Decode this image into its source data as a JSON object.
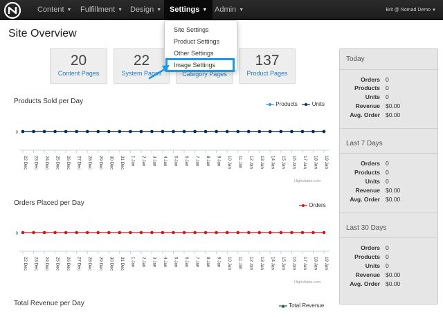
{
  "navbar": {
    "items": [
      {
        "label": "Content"
      },
      {
        "label": "Fulfillment"
      },
      {
        "label": "Design"
      },
      {
        "label": "Settings"
      },
      {
        "label": "Admin"
      }
    ],
    "user": "Brit @ Nomad Demo"
  },
  "settings_menu": {
    "items": [
      "Site Settings",
      "Product Settings",
      "Other Settings",
      "Image Settings"
    ]
  },
  "page_title": "Site Overview",
  "stats": [
    {
      "value": "20",
      "label": "Content Pages"
    },
    {
      "value": "22",
      "label": "System Pages"
    },
    {
      "value": "",
      "label": "Category Pages"
    },
    {
      "value": "137",
      "label": "Product Pages"
    }
  ],
  "colors": {
    "products": "#3a8fd1",
    "units": "#0c2d57",
    "orders": "#c0201d",
    "revenue": "#1f5b3b",
    "link": "#2a7bc0"
  },
  "chart_data": [
    {
      "type": "line",
      "title": "Products Sold per Day",
      "categories": [
        "22 Dec",
        "23 Dec",
        "24 Dec",
        "25 Dec",
        "26 Dec",
        "27 Dec",
        "28 Dec",
        "29 Dec",
        "30 Dec",
        "31 Dec",
        "1 Jan",
        "2 Jan",
        "3 Jan",
        "4 Jan",
        "5 Jan",
        "6 Jan",
        "7 Jan",
        "8 Jan",
        "9 Jan",
        "10 Jan",
        "11 Jan",
        "12 Jan",
        "13 Jan",
        "14 Jan",
        "15 Jan",
        "16 Jan",
        "17 Jan",
        "18 Jan",
        "19 Jan"
      ],
      "series": [
        {
          "name": "Products",
          "values": [
            0,
            0,
            0,
            0,
            0,
            0,
            0,
            0,
            0,
            0,
            0,
            0,
            0,
            0,
            0,
            0,
            0,
            0,
            0,
            0,
            0,
            0,
            0,
            0,
            0,
            0,
            0,
            0,
            0
          ]
        },
        {
          "name": "Units",
          "values": [
            0,
            0,
            0,
            0,
            0,
            0,
            0,
            0,
            0,
            0,
            0,
            0,
            0,
            0,
            0,
            0,
            0,
            0,
            0,
            0,
            0,
            0,
            0,
            0,
            0,
            0,
            0,
            0,
            0
          ]
        }
      ],
      "ytick": "0",
      "legend": "top-right",
      "credit": "Highcharts.com"
    },
    {
      "type": "line",
      "title": "Orders Placed per Day",
      "categories": [
        "22 Dec",
        "23 Dec",
        "24 Dec",
        "25 Dec",
        "26 Dec",
        "27 Dec",
        "28 Dec",
        "29 Dec",
        "30 Dec",
        "31 Dec",
        "1 Jan",
        "2 Jan",
        "3 Jan",
        "4 Jan",
        "5 Jan",
        "6 Jan",
        "7 Jan",
        "8 Jan",
        "9 Jan",
        "10 Jan",
        "11 Jan",
        "12 Jan",
        "13 Jan",
        "14 Jan",
        "15 Jan",
        "16 Jan",
        "17 Jan",
        "18 Jan",
        "19 Jan"
      ],
      "series": [
        {
          "name": "Orders",
          "values": [
            0,
            0,
            0,
            0,
            0,
            0,
            0,
            0,
            0,
            0,
            0,
            0,
            0,
            0,
            0,
            0,
            0,
            0,
            0,
            0,
            0,
            0,
            0,
            0,
            0,
            0,
            0,
            0,
            0
          ]
        }
      ],
      "ytick": "0",
      "legend": "top-right",
      "credit": "Highcharts.com"
    },
    {
      "type": "line",
      "title": "Total Revenue per Day",
      "series": [
        {
          "name": "Total Revenue"
        }
      ],
      "legend": "top-right"
    }
  ],
  "sidebar": {
    "sections": [
      {
        "title": "Today",
        "rows": [
          {
            "k": "Orders",
            "v": "0"
          },
          {
            "k": "Products",
            "v": "0"
          },
          {
            "k": "Units",
            "v": "0"
          },
          {
            "k": "Revenue",
            "v": "$0.00"
          },
          {
            "k": "Avg. Order",
            "v": "$0.00"
          }
        ]
      },
      {
        "title": "Last 7 Days",
        "rows": [
          {
            "k": "Orders",
            "v": "0"
          },
          {
            "k": "Products",
            "v": "0"
          },
          {
            "k": "Units",
            "v": "0"
          },
          {
            "k": "Revenue",
            "v": "$0.00"
          },
          {
            "k": "Avg. Order",
            "v": "$0.00"
          }
        ]
      },
      {
        "title": "Last 30 Days",
        "rows": [
          {
            "k": "Orders",
            "v": "0"
          },
          {
            "k": "Products",
            "v": "0"
          },
          {
            "k": "Units",
            "v": "0"
          },
          {
            "k": "Revenue",
            "v": "$0.00"
          },
          {
            "k": "Avg. Order",
            "v": "$0.00"
          }
        ]
      }
    ]
  }
}
